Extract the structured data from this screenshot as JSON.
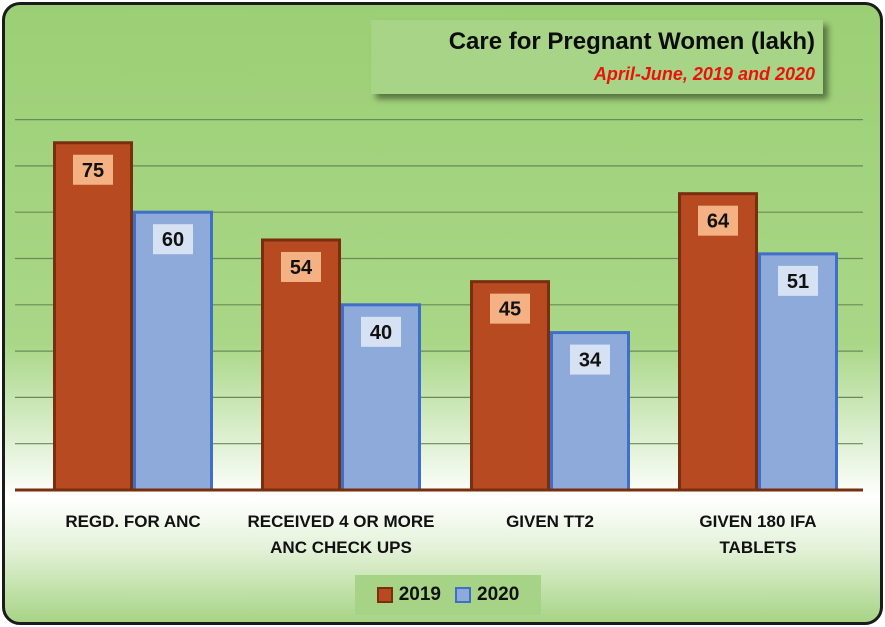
{
  "chart_data": {
    "type": "bar",
    "title": "Care for Pregnant Women (lakh)",
    "subtitle": "April-June, 2019 and 2020",
    "categories": [
      [
        "REGD. FOR ANC"
      ],
      [
        "RECEIVED 4 OR MORE",
        "ANC CHECK UPS"
      ],
      [
        "GIVEN TT2"
      ],
      [
        "GIVEN 180 IFA",
        "TABLETS"
      ]
    ],
    "series": [
      {
        "name": "2019",
        "values": [
          75,
          54,
          45,
          64
        ],
        "color": "#b84a21",
        "border": "#7a2e10",
        "label_bg": "#f4b183"
      },
      {
        "name": "2020",
        "values": [
          60,
          40,
          34,
          51
        ],
        "color": "#8eaadb",
        "border": "#3f6fc6",
        "label_bg": "#d6e1f3"
      }
    ],
    "ylim": [
      0,
      80
    ],
    "grid": true,
    "legend": "bottom",
    "xlabel": "",
    "ylabel": ""
  }
}
